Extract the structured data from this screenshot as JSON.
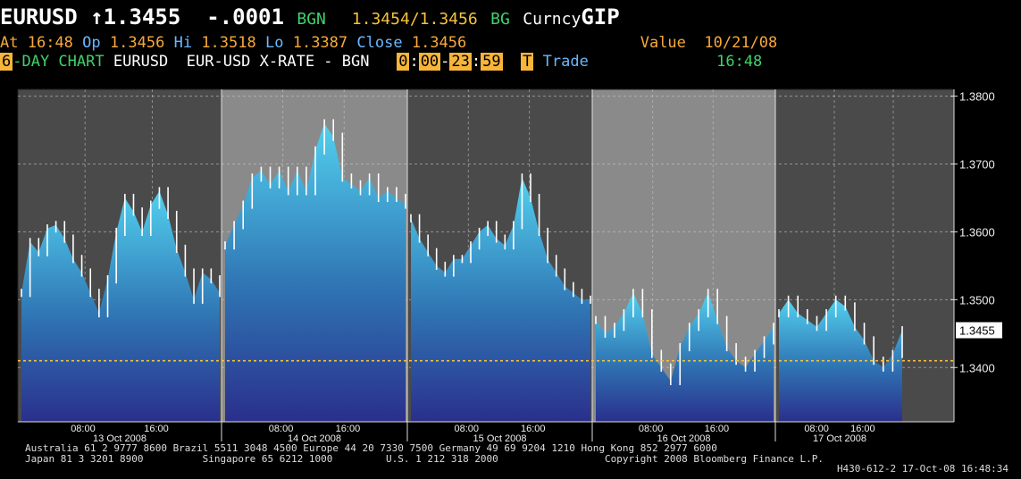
{
  "header": {
    "ticker": "EURUSD",
    "arrow": "↑",
    "last": "1.3455",
    "change": "-.0001",
    "source": "BGN",
    "bid_ask": "1.3454/1.3456",
    "bg_label": "BG",
    "market": "Curncy",
    "function": "GIP",
    "at_label": "At",
    "at_time": "16:48",
    "op_label": "Op",
    "op": "1.3456",
    "hi_label": "Hi",
    "hi": "1.3518",
    "lo_label": "Lo",
    "lo": "1.3387",
    "close_label": "Close",
    "close": "1.3456",
    "value_label": "Value",
    "value_date": "10/21/08",
    "days": "6",
    "chart_label": "-DAY CHART",
    "pair": "EURUSD",
    "desc": "EUR-USD X-RATE - BGN",
    "t_start_h": "0",
    "t_start_m": "00",
    "t_end_h": "23",
    "t_end_m": "59",
    "t_box": "T",
    "trade": "Trade",
    "time_right": "16:48"
  },
  "footer": {
    "line1": "Australia 61 2 9777 8600 Brazil 5511 3048 4500 Europe 44 20 7330 7500 Germany 49 69 9204 1210 Hong Kong 852 2977 6000",
    "line2": "Japan 81 3 3201 8900          Singapore 65 6212 1000         U.S. 1 212 318 2000                  Copyright 2008 Bloomberg Finance L.P.",
    "line3": "H430-612-2 17-Oct-08 16:48:34"
  },
  "chart_data": {
    "type": "area",
    "ylim": [
      1.332,
      1.381
    ],
    "yticks": [
      "1.3800",
      "1.3700",
      "1.3600",
      "1.3500",
      "1.3400"
    ],
    "last_price_label": "1.3455",
    "reference_line": 1.341,
    "reference_line_color": "#f7c23a",
    "area_color_top": "#52d0ee",
    "area_color_bottom": "#2a2f8c",
    "days": [
      {
        "date": "13 Oct 2008",
        "ticks": [
          "08:00",
          "16:00"
        ]
      },
      {
        "date": "14 Oct 2008",
        "ticks": [
          "08:00",
          "16:00"
        ]
      },
      {
        "date": "15 Oct 2008",
        "ticks": [
          "08:00",
          "16:00"
        ]
      },
      {
        "date": "16 Oct 2008",
        "ticks": [
          "08:00",
          "16:00"
        ]
      },
      {
        "date": "17 Oct 2008",
        "ticks": [
          "08:00",
          "16:00"
        ]
      }
    ],
    "series": [
      {
        "day": 0,
        "values": [
          1.351,
          1.3585,
          1.357,
          1.3605,
          1.361,
          1.359,
          1.356,
          1.354,
          1.351,
          1.348,
          1.353,
          1.36,
          1.365,
          1.363,
          1.36,
          1.364,
          1.366,
          1.3625,
          1.3575,
          1.354,
          1.35,
          1.354,
          1.353,
          1.351
        ]
      },
      {
        "day": 1,
        "values": [
          1.358,
          1.361,
          1.364,
          1.368,
          1.369,
          1.367,
          1.369,
          1.366,
          1.369,
          1.366,
          1.372,
          1.376,
          1.374,
          1.368,
          1.367,
          1.366,
          1.368,
          1.365,
          1.366,
          1.365,
          1.364
        ]
      },
      {
        "day": 2,
        "values": [
          1.362,
          1.359,
          1.357,
          1.355,
          1.354,
          1.356,
          1.356,
          1.358,
          1.36,
          1.361,
          1.359,
          1.358,
          1.361,
          1.368,
          1.365,
          1.36,
          1.356,
          1.354,
          1.352,
          1.351,
          1.35,
          1.35
        ]
      },
      {
        "day": 3,
        "values": [
          1.347,
          1.345,
          1.346,
          1.348,
          1.351,
          1.348,
          1.342,
          1.34,
          1.338,
          1.343,
          1.346,
          1.348,
          1.351,
          1.347,
          1.343,
          1.341,
          1.34,
          1.342,
          1.344,
          1.346
        ]
      },
      {
        "day": 4,
        "values": [
          1.348,
          1.35,
          1.348,
          1.347,
          1.346,
          1.348,
          1.35,
          1.349,
          1.346,
          1.344,
          1.341,
          1.34,
          1.342,
          1.3455
        ]
      }
    ]
  }
}
